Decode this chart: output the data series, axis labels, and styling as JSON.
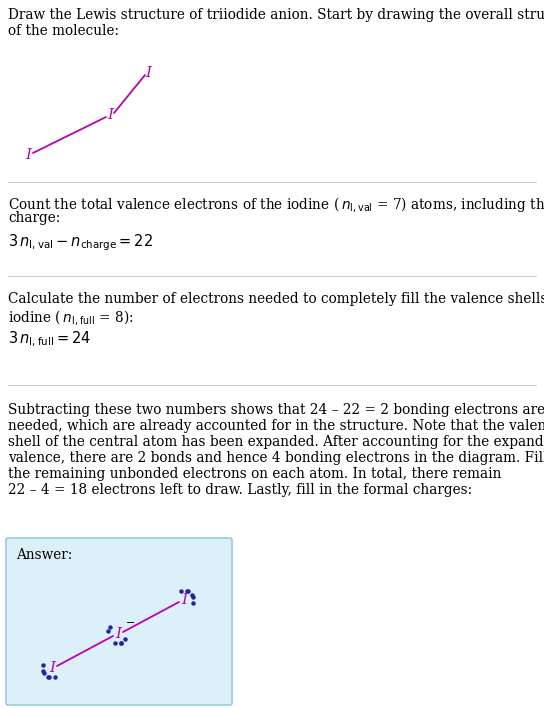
{
  "title_line1": "Draw the Lewis structure of triiodide anion. Start by drawing the overall structure",
  "title_line2": "of the molecule:",
  "s1_line1": "Count the total valence electrons of the iodine ( $n_{\\mathrm{I,val}}$ = 7) atoms, including the net",
  "s1_line2": "charge:",
  "s1_formula": "$3\\, n_{\\mathrm{I,val}} - n_{\\mathrm{charge}} = 22$",
  "s2_line1": "Calculate the number of electrons needed to completely fill the valence shells for",
  "s2_line2": "iodine ( $n_{\\mathrm{I,full}}$ = 8):",
  "s2_formula": "$3\\, n_{\\mathrm{I,full}} = 24$",
  "s3_line1": "Subtracting these two numbers shows that 24 – 22 = 2 bonding electrons are",
  "s3_line2": "needed, which are already accounted for in the structure. Note that the valence",
  "s3_line3": "shell of the central atom has been expanded. After accounting for the expanded",
  "s3_line4": "valence, there are 2 bonds and hence 4 bonding electrons in the diagram. Fill in",
  "s3_line5": "the remaining unbonded electrons on each atom. In total, there remain",
  "s3_line6": "22 – 4 = 18 electrons left to draw. Lastly, fill in the formal charges:",
  "answer_label": "Answer:",
  "iodine_color": "#BB00BB",
  "dot_color": "#2222AA",
  "background_color": "#FFFFFF",
  "answer_bg_color": "#DCF0FA",
  "answer_border_color": "#99CCDD",
  "text_color": "#000000",
  "sep_color": "#CCCCCC",
  "font_size": 9.8,
  "formula_font_size": 10.5
}
